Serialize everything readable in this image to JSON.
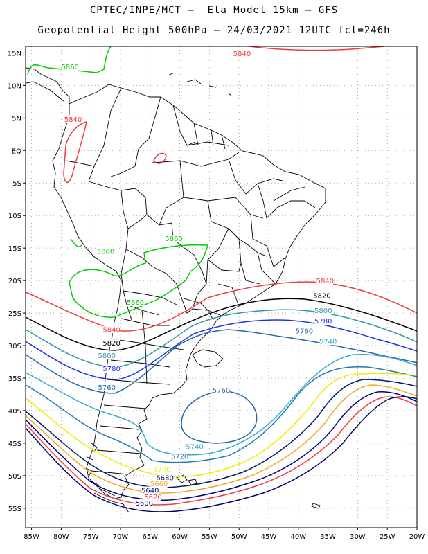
{
  "title_line1": "CPTEC/INPE/MCT –  Eta Model 15km – GFS",
  "title_line2": "Geopotential Height 500hPa – 24/03/2021 12UTC fct=246h",
  "map": {
    "lon_range": [
      -86,
      -20
    ],
    "lat_range": [
      -58,
      16
    ],
    "lat_ticks": [
      "15N",
      "10N",
      "5N",
      "EQ",
      "5S",
      "10S",
      "15S",
      "20S",
      "25S",
      "30S",
      "35S",
      "40S",
      "45S",
      "50S",
      "55S"
    ],
    "lon_ticks": [
      "85W",
      "80W",
      "75W",
      "70W",
      "65W",
      "60W",
      "55W",
      "50W",
      "45W",
      "40W",
      "35W",
      "30W",
      "25W",
      "20W"
    ],
    "grid": "dotted",
    "border_color": "#000000"
  },
  "contours": [
    {
      "value": "5840",
      "color": "#ee3b3b"
    },
    {
      "value": "5860",
      "color": "#00cc00"
    },
    {
      "value": "5820",
      "color": "#000000"
    },
    {
      "value": "5800",
      "color": "#3399aa"
    },
    {
      "value": "5780",
      "color": "#1a33ee"
    },
    {
      "value": "5760",
      "color": "#2266aa"
    },
    {
      "value": "5740",
      "color": "#33aacc"
    },
    {
      "value": "5720",
      "color": "#1f77b4"
    },
    {
      "value": "5700",
      "color": "#eeee00"
    },
    {
      "value": "5680",
      "color": "#001a66"
    },
    {
      "value": "5660",
      "color": "#eeaa22"
    },
    {
      "value": "5640",
      "color": "#000080"
    },
    {
      "value": "5620",
      "color": "#ee3b3b"
    },
    {
      "value": "5600",
      "color": "#000066"
    }
  ],
  "labels": [
    {
      "text": "5840",
      "lon": -49.5,
      "lat": 14.7,
      "color": "#ee3b3b"
    },
    {
      "text": "5860",
      "lon": -78.5,
      "lat": 12.7,
      "color": "#00cc00"
    },
    {
      "text": "5840",
      "lon": -78.0,
      "lat": 4.6,
      "color": "#ee3b3b"
    },
    {
      "text": "5860",
      "lon": -61.0,
      "lat": -13.7,
      "color": "#00cc00"
    },
    {
      "text": "5860",
      "lon": -72.5,
      "lat": -15.7,
      "color": "#00cc00"
    },
    {
      "text": "5860",
      "lon": -67.5,
      "lat": -23.5,
      "color": "#00cc00"
    },
    {
      "text": "5840",
      "lon": -71.5,
      "lat": -27.7,
      "color": "#ee3b3b"
    },
    {
      "text": "5820",
      "lon": -71.5,
      "lat": -29.8,
      "color": "#000000"
    },
    {
      "text": "5800",
      "lon": -72.3,
      "lat": -31.7,
      "color": "#3399aa"
    },
    {
      "text": "5780",
      "lon": -71.5,
      "lat": -33.7,
      "color": "#1a33ee"
    },
    {
      "text": "5760",
      "lon": -72.3,
      "lat": -36.6,
      "color": "#2266aa"
    },
    {
      "text": "5840",
      "lon": -35.5,
      "lat": -20.2,
      "color": "#ee3b3b"
    },
    {
      "text": "5820",
      "lon": -36.0,
      "lat": -22.5,
      "color": "#000000"
    },
    {
      "text": "5800",
      "lon": -35.8,
      "lat": -24.8,
      "color": "#3399aa"
    },
    {
      "text": "5780",
      "lon": -35.8,
      "lat": -26.4,
      "color": "#1a33ee"
    },
    {
      "text": "5760",
      "lon": -39.0,
      "lat": -27.9,
      "color": "#2266aa"
    },
    {
      "text": "5740",
      "lon": -35.0,
      "lat": -29.5,
      "color": "#33aacc"
    },
    {
      "text": "5760",
      "lon": -53.0,
      "lat": -37.0,
      "color": "#2266aa"
    },
    {
      "text": "5740",
      "lon": -57.5,
      "lat": -45.7,
      "color": "#33aacc"
    },
    {
      "text": "5720",
      "lon": -60.0,
      "lat": -47.2,
      "color": "#1f77b4"
    },
    {
      "text": "5700",
      "lon": -63.0,
      "lat": -49.2,
      "color": "#eeee00"
    },
    {
      "text": "5680",
      "lon": -62.5,
      "lat": -50.5,
      "color": "#001a66"
    },
    {
      "text": "5660",
      "lon": -63.5,
      "lat": -51.4,
      "color": "#eeaa22"
    },
    {
      "text": "5640",
      "lon": -65.0,
      "lat": -52.4,
      "color": "#000080"
    },
    {
      "text": "5620",
      "lon": -64.5,
      "lat": -53.4,
      "color": "#ee3b3b"
    },
    {
      "text": "5600",
      "lon": -66.0,
      "lat": -54.4,
      "color": "#000066"
    }
  ]
}
